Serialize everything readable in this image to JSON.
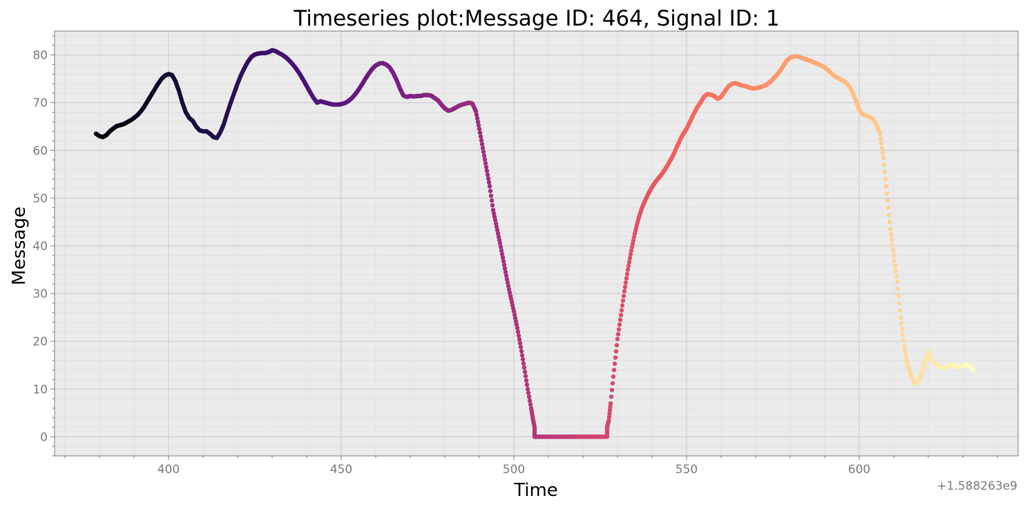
{
  "chart_data": {
    "type": "scatter",
    "title": "Timeseries plot:Message ID: 464, Signal ID: 1",
    "xlabel": "Time",
    "ylabel": "Message",
    "x_offset_label": "+1.588263e9",
    "xlim": [
      367,
      646
    ],
    "ylim": [
      -4,
      85
    ],
    "xticks": [
      400,
      450,
      500,
      550,
      600
    ],
    "yticks": [
      0,
      10,
      20,
      30,
      40,
      50,
      60,
      70,
      80
    ],
    "grid": true,
    "colormap": "magma",
    "colors": {
      "background": "#ebebeb",
      "grid_major": "#cfcfcf",
      "grid_minor": "#e0e0e0",
      "spine": "#7a7a7a",
      "colormap_stops": [
        "#000004",
        "#180f3d",
        "#440f76",
        "#721f81",
        "#9e2f7f",
        "#cd4071",
        "#f1605d",
        "#fd9668",
        "#feca8d",
        "#fcfdbf"
      ]
    },
    "series": [
      {
        "points": [
          [
            379,
            63.5
          ],
          [
            380,
            63.0
          ],
          [
            381,
            62.8
          ],
          [
            382,
            63.2
          ],
          [
            383,
            64.0
          ],
          [
            384,
            64.6
          ],
          [
            385,
            65.1
          ],
          [
            386,
            65.3
          ],
          [
            387,
            65.5
          ],
          [
            388,
            65.9
          ],
          [
            389,
            66.3
          ],
          [
            390,
            66.8
          ],
          [
            391,
            67.4
          ],
          [
            392,
            68.2
          ],
          [
            393,
            69.2
          ],
          [
            394,
            70.4
          ],
          [
            395,
            71.6
          ],
          [
            396,
            72.8
          ],
          [
            397,
            74.0
          ],
          [
            398,
            75.0
          ],
          [
            399,
            75.7
          ],
          [
            400,
            76.0
          ],
          [
            401,
            75.8
          ],
          [
            402,
            74.5
          ],
          [
            403,
            72.5
          ],
          [
            404,
            70.0
          ],
          [
            405,
            68.0
          ],
          [
            406,
            66.8
          ],
          [
            407,
            66.2
          ],
          [
            408,
            65.0
          ],
          [
            409,
            64.2
          ],
          [
            410,
            64.0
          ],
          [
            411,
            64.0
          ],
          [
            412,
            63.5
          ],
          [
            413,
            62.8
          ],
          [
            414,
            62.6
          ],
          [
            415,
            63.8
          ],
          [
            416,
            65.5
          ],
          [
            417,
            67.8
          ],
          [
            418,
            70.0
          ],
          [
            419,
            72.0
          ],
          [
            420,
            74.0
          ],
          [
            421,
            75.8
          ],
          [
            422,
            77.3
          ],
          [
            423,
            78.6
          ],
          [
            424,
            79.6
          ],
          [
            425,
            80.1
          ],
          [
            426,
            80.3
          ],
          [
            427,
            80.4
          ],
          [
            428,
            80.4
          ],
          [
            429,
            80.6
          ],
          [
            430,
            81.0
          ],
          [
            431,
            80.8
          ],
          [
            432,
            80.4
          ],
          [
            433,
            80.0
          ],
          [
            434,
            79.5
          ],
          [
            435,
            78.8
          ],
          [
            436,
            78.0
          ],
          [
            437,
            77.1
          ],
          [
            438,
            76.0
          ],
          [
            439,
            74.8
          ],
          [
            440,
            73.5
          ],
          [
            441,
            72.2
          ],
          [
            442,
            71.0
          ],
          [
            443,
            70.0
          ],
          [
            444,
            70.3
          ],
          [
            445,
            70.1
          ],
          [
            446,
            69.9
          ],
          [
            447,
            69.7
          ],
          [
            448,
            69.6
          ],
          [
            449,
            69.6
          ],
          [
            450,
            69.7
          ],
          [
            451,
            69.9
          ],
          [
            452,
            70.3
          ],
          [
            453,
            70.9
          ],
          [
            454,
            71.7
          ],
          [
            455,
            72.7
          ],
          [
            456,
            73.8
          ],
          [
            457,
            75.0
          ],
          [
            458,
            76.1
          ],
          [
            459,
            77.1
          ],
          [
            460,
            77.8
          ],
          [
            461,
            78.2
          ],
          [
            462,
            78.3
          ],
          [
            463,
            78.0
          ],
          [
            464,
            77.4
          ],
          [
            465,
            76.3
          ],
          [
            466,
            74.8
          ],
          [
            467,
            73.0
          ],
          [
            468,
            71.5
          ],
          [
            469,
            71.2
          ],
          [
            470,
            71.4
          ],
          [
            471,
            71.3
          ],
          [
            472,
            71.4
          ],
          [
            473,
            71.4
          ],
          [
            474,
            71.6
          ],
          [
            475,
            71.6
          ],
          [
            476,
            71.5
          ],
          [
            477,
            71.0
          ],
          [
            478,
            70.5
          ],
          [
            479,
            69.6
          ],
          [
            480,
            68.8
          ],
          [
            481,
            68.3
          ],
          [
            482,
            68.5
          ],
          [
            483,
            68.9
          ],
          [
            484,
            69.3
          ],
          [
            485,
            69.6
          ],
          [
            486,
            69.8
          ],
          [
            487,
            70.0
          ],
          [
            488,
            69.8
          ],
          [
            489,
            68.2
          ],
          [
            490,
            64.5
          ],
          [
            491,
            60.5
          ],
          [
            492,
            56.5
          ],
          [
            493,
            52.5
          ],
          [
            494,
            47.5
          ],
          [
            495,
            44.0
          ],
          [
            496,
            40.5
          ],
          [
            497,
            36.8
          ],
          [
            498,
            33.0
          ],
          [
            499,
            29.5
          ],
          [
            500,
            26.3
          ],
          [
            501,
            22.8
          ],
          [
            502,
            18.8
          ],
          [
            503,
            14.5
          ],
          [
            504,
            10.0
          ],
          [
            505,
            6.0
          ],
          [
            505.5,
            3.8
          ],
          [
            506,
            2.0
          ],
          [
            506,
            0
          ],
          [
            507,
            0
          ],
          [
            508,
            0
          ],
          [
            509,
            0
          ],
          [
            510,
            0
          ],
          [
            511,
            0
          ],
          [
            512,
            0
          ],
          [
            513,
            0
          ],
          [
            514,
            0
          ],
          [
            515,
            0
          ],
          [
            516,
            0
          ],
          [
            517,
            0
          ],
          [
            518,
            0
          ],
          [
            519,
            0
          ],
          [
            520,
            0
          ],
          [
            521,
            0
          ],
          [
            522,
            0
          ],
          [
            523,
            0
          ],
          [
            524,
            0
          ],
          [
            525,
            0
          ],
          [
            526,
            0
          ],
          [
            527,
            0
          ],
          [
            527,
            2.0
          ],
          [
            527.5,
            3.5
          ],
          [
            528,
            7.0
          ],
          [
            529,
            14.0
          ],
          [
            530,
            20.5
          ],
          [
            531,
            25.5
          ],
          [
            532,
            30.5
          ],
          [
            533,
            35.0
          ],
          [
            534,
            39.0
          ],
          [
            535,
            42.5
          ],
          [
            536,
            45.5
          ],
          [
            537,
            47.8
          ],
          [
            538,
            49.5
          ],
          [
            539,
            51.0
          ],
          [
            540,
            52.3
          ],
          [
            541,
            53.4
          ],
          [
            542,
            54.3
          ],
          [
            543,
            55.2
          ],
          [
            544,
            56.3
          ],
          [
            545,
            57.5
          ],
          [
            546,
            58.8
          ],
          [
            547,
            60.4
          ],
          [
            548,
            62.0
          ],
          [
            549,
            63.4
          ],
          [
            550,
            64.5
          ],
          [
            551,
            66.0
          ],
          [
            552,
            67.5
          ],
          [
            553,
            68.9
          ],
          [
            554,
            70.0
          ],
          [
            555,
            71.2
          ],
          [
            556,
            71.8
          ],
          [
            557,
            71.7
          ],
          [
            558,
            71.4
          ],
          [
            559,
            70.8
          ],
          [
            560,
            71.2
          ],
          [
            561,
            72.3
          ],
          [
            562,
            73.3
          ],
          [
            563,
            73.9
          ],
          [
            564,
            74.1
          ],
          [
            565,
            73.9
          ],
          [
            566,
            73.6
          ],
          [
            567,
            73.5
          ],
          [
            568,
            73.2
          ],
          [
            569,
            73.0
          ],
          [
            570,
            73.0
          ],
          [
            571,
            73.2
          ],
          [
            572,
            73.4
          ],
          [
            573,
            73.7
          ],
          [
            574,
            74.2
          ],
          [
            575,
            74.9
          ],
          [
            576,
            75.7
          ],
          [
            577,
            76.6
          ],
          [
            578,
            77.7
          ],
          [
            579,
            78.8
          ],
          [
            580,
            79.4
          ],
          [
            581,
            79.7
          ],
          [
            582,
            79.7
          ],
          [
            583,
            79.5
          ],
          [
            584,
            79.2
          ],
          [
            585,
            79.0
          ],
          [
            586,
            78.7
          ],
          [
            587,
            78.4
          ],
          [
            588,
            78.1
          ],
          [
            589,
            77.8
          ],
          [
            590,
            77.4
          ],
          [
            591,
            76.8
          ],
          [
            592,
            76.1
          ],
          [
            593,
            75.5
          ],
          [
            594,
            75.1
          ],
          [
            595,
            74.7
          ],
          [
            596,
            74.3
          ],
          [
            597,
            73.5
          ],
          [
            598,
            72.3
          ],
          [
            599,
            70.5
          ],
          [
            600,
            68.5
          ],
          [
            601,
            67.5
          ],
          [
            602,
            67.3
          ],
          [
            603,
            67.0
          ],
          [
            604,
            66.5
          ],
          [
            605,
            65.5
          ],
          [
            606,
            63.5
          ],
          [
            607,
            58.5
          ],
          [
            608,
            51.0
          ],
          [
            609,
            43.5
          ],
          [
            610,
            38.0
          ],
          [
            611,
            32.5
          ],
          [
            612,
            25.0
          ],
          [
            613,
            19.0
          ],
          [
            614,
            15.0
          ],
          [
            615,
            13.0
          ],
          [
            616,
            11.2
          ],
          [
            617,
            11.6
          ],
          [
            618,
            13.0
          ],
          [
            619,
            15.5
          ],
          [
            620,
            17.8
          ],
          [
            621,
            16.2
          ],
          [
            622,
            15.2
          ],
          [
            623,
            14.8
          ],
          [
            624,
            14.5
          ],
          [
            625,
            14.5
          ],
          [
            626,
            14.8
          ],
          [
            627,
            15.1
          ],
          [
            628,
            14.8
          ],
          [
            629,
            14.6
          ],
          [
            630,
            14.9
          ],
          [
            631,
            15.2
          ],
          [
            632,
            14.8
          ],
          [
            633,
            14.0
          ]
        ]
      }
    ]
  }
}
